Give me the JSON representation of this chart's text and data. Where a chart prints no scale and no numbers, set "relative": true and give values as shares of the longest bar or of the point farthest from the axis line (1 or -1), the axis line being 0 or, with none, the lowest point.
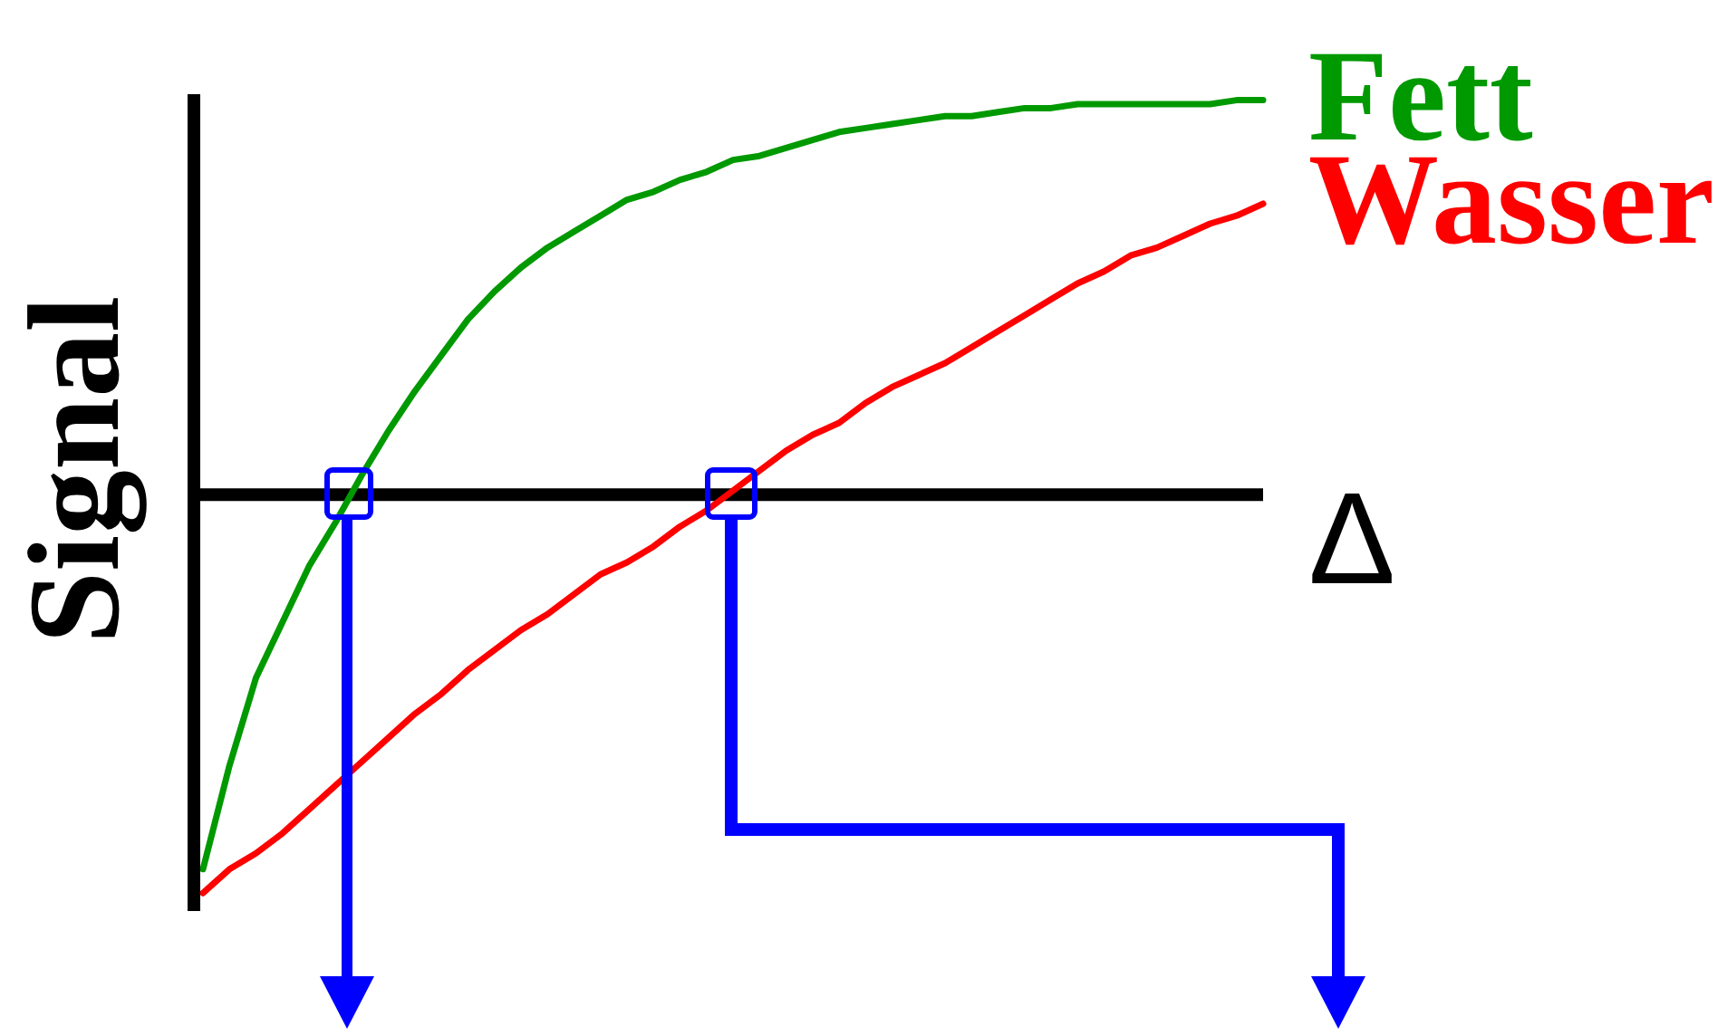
{
  "chart_data": {
    "type": "line",
    "relative": true,
    "ylabel": "Signal",
    "xlabel": "Δ",
    "marker": "none",
    "line_style": "solid",
    "categories": [
      null,
      null,
      null,
      null,
      null,
      null,
      null,
      null,
      null,
      null,
      null,
      null,
      null,
      null,
      null,
      null,
      null,
      null,
      null,
      null,
      null,
      null,
      null,
      null,
      null,
      null,
      null,
      null,
      null,
      null,
      null,
      null,
      null,
      null,
      null,
      null,
      null,
      null,
      null,
      null,
      null
    ],
    "series": [
      {
        "name": "Fett",
        "color": "#009900",
        "values": [
          -0.94,
          -0.68,
          -0.46,
          -0.32,
          -0.18,
          -0.07,
          0.05,
          0.16,
          0.26,
          0.35,
          0.44,
          0.51,
          0.57,
          0.62,
          0.66,
          0.7,
          0.74,
          0.76,
          0.79,
          0.81,
          0.84,
          0.85,
          0.87,
          0.89,
          0.91,
          0.92,
          0.93,
          0.94,
          0.95,
          0.95,
          0.96,
          0.97,
          0.97,
          0.98,
          0.98,
          0.98,
          0.98,
          0.98,
          0.98,
          0.99,
          0.99
        ]
      },
      {
        "name": "Wasser",
        "color": "#ff0000",
        "values": [
          -1.0,
          -0.94,
          -0.9,
          -0.85,
          -0.79,
          -0.73,
          -0.67,
          -0.61,
          -0.55,
          -0.5,
          -0.44,
          -0.39,
          -0.34,
          -0.3,
          -0.25,
          -0.2,
          -0.17,
          -0.13,
          -0.08,
          -0.04,
          0.01,
          0.06,
          0.11,
          0.15,
          0.18,
          0.23,
          0.27,
          0.3,
          0.33,
          0.37,
          0.41,
          0.45,
          0.49,
          0.53,
          0.56,
          0.6,
          0.62,
          0.65,
          0.68,
          0.7,
          0.73
        ]
      }
    ]
  }
}
